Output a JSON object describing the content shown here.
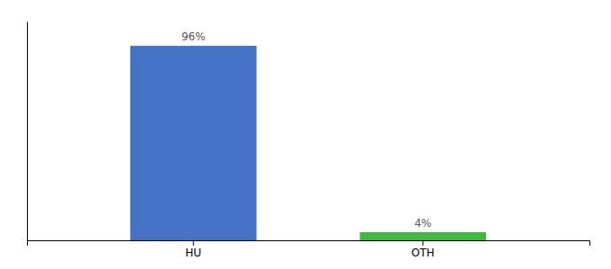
{
  "chart_data": {
    "type": "bar",
    "categories": [
      "HU",
      "OTH"
    ],
    "values": [
      96,
      4
    ],
    "value_labels": [
      "96%",
      "4%"
    ],
    "colors": [
      "#4472c4",
      "#3dba3d"
    ],
    "ylim": [
      0,
      108
    ],
    "data_labels": true,
    "tick_labels": "x"
  }
}
